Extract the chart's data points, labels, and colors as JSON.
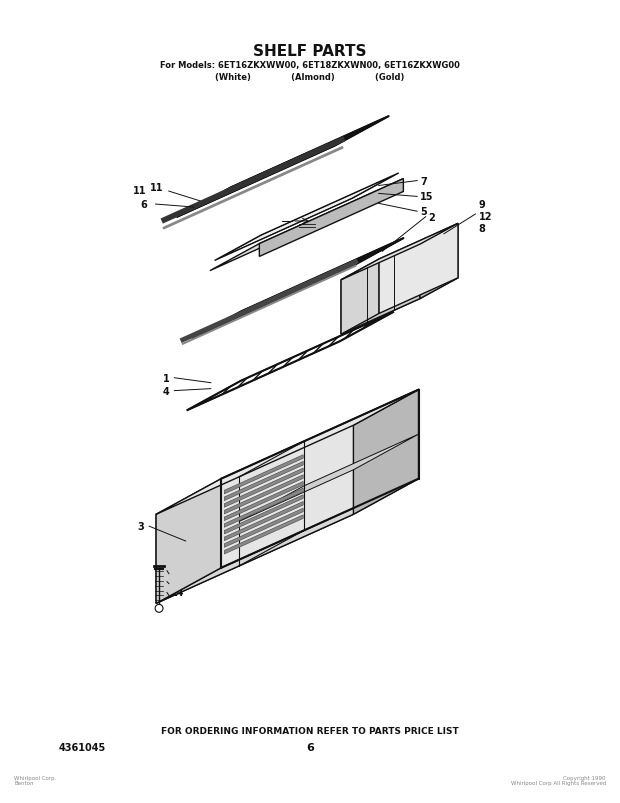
{
  "title": "SHELF PARTS",
  "subtitle": "For Models: 6ET16ZKXWW00, 6ET18ZKXWN00, 6ET16ZKXWG00",
  "subtitle2": "(White)              (Almond)              (Gold)",
  "footer_text": "FOR ORDERING INFORMATION REFER TO PARTS PRICE LIST",
  "part_number": "4361045",
  "page_number": "6",
  "bg_color": "#ffffff",
  "line_color": "#111111"
}
